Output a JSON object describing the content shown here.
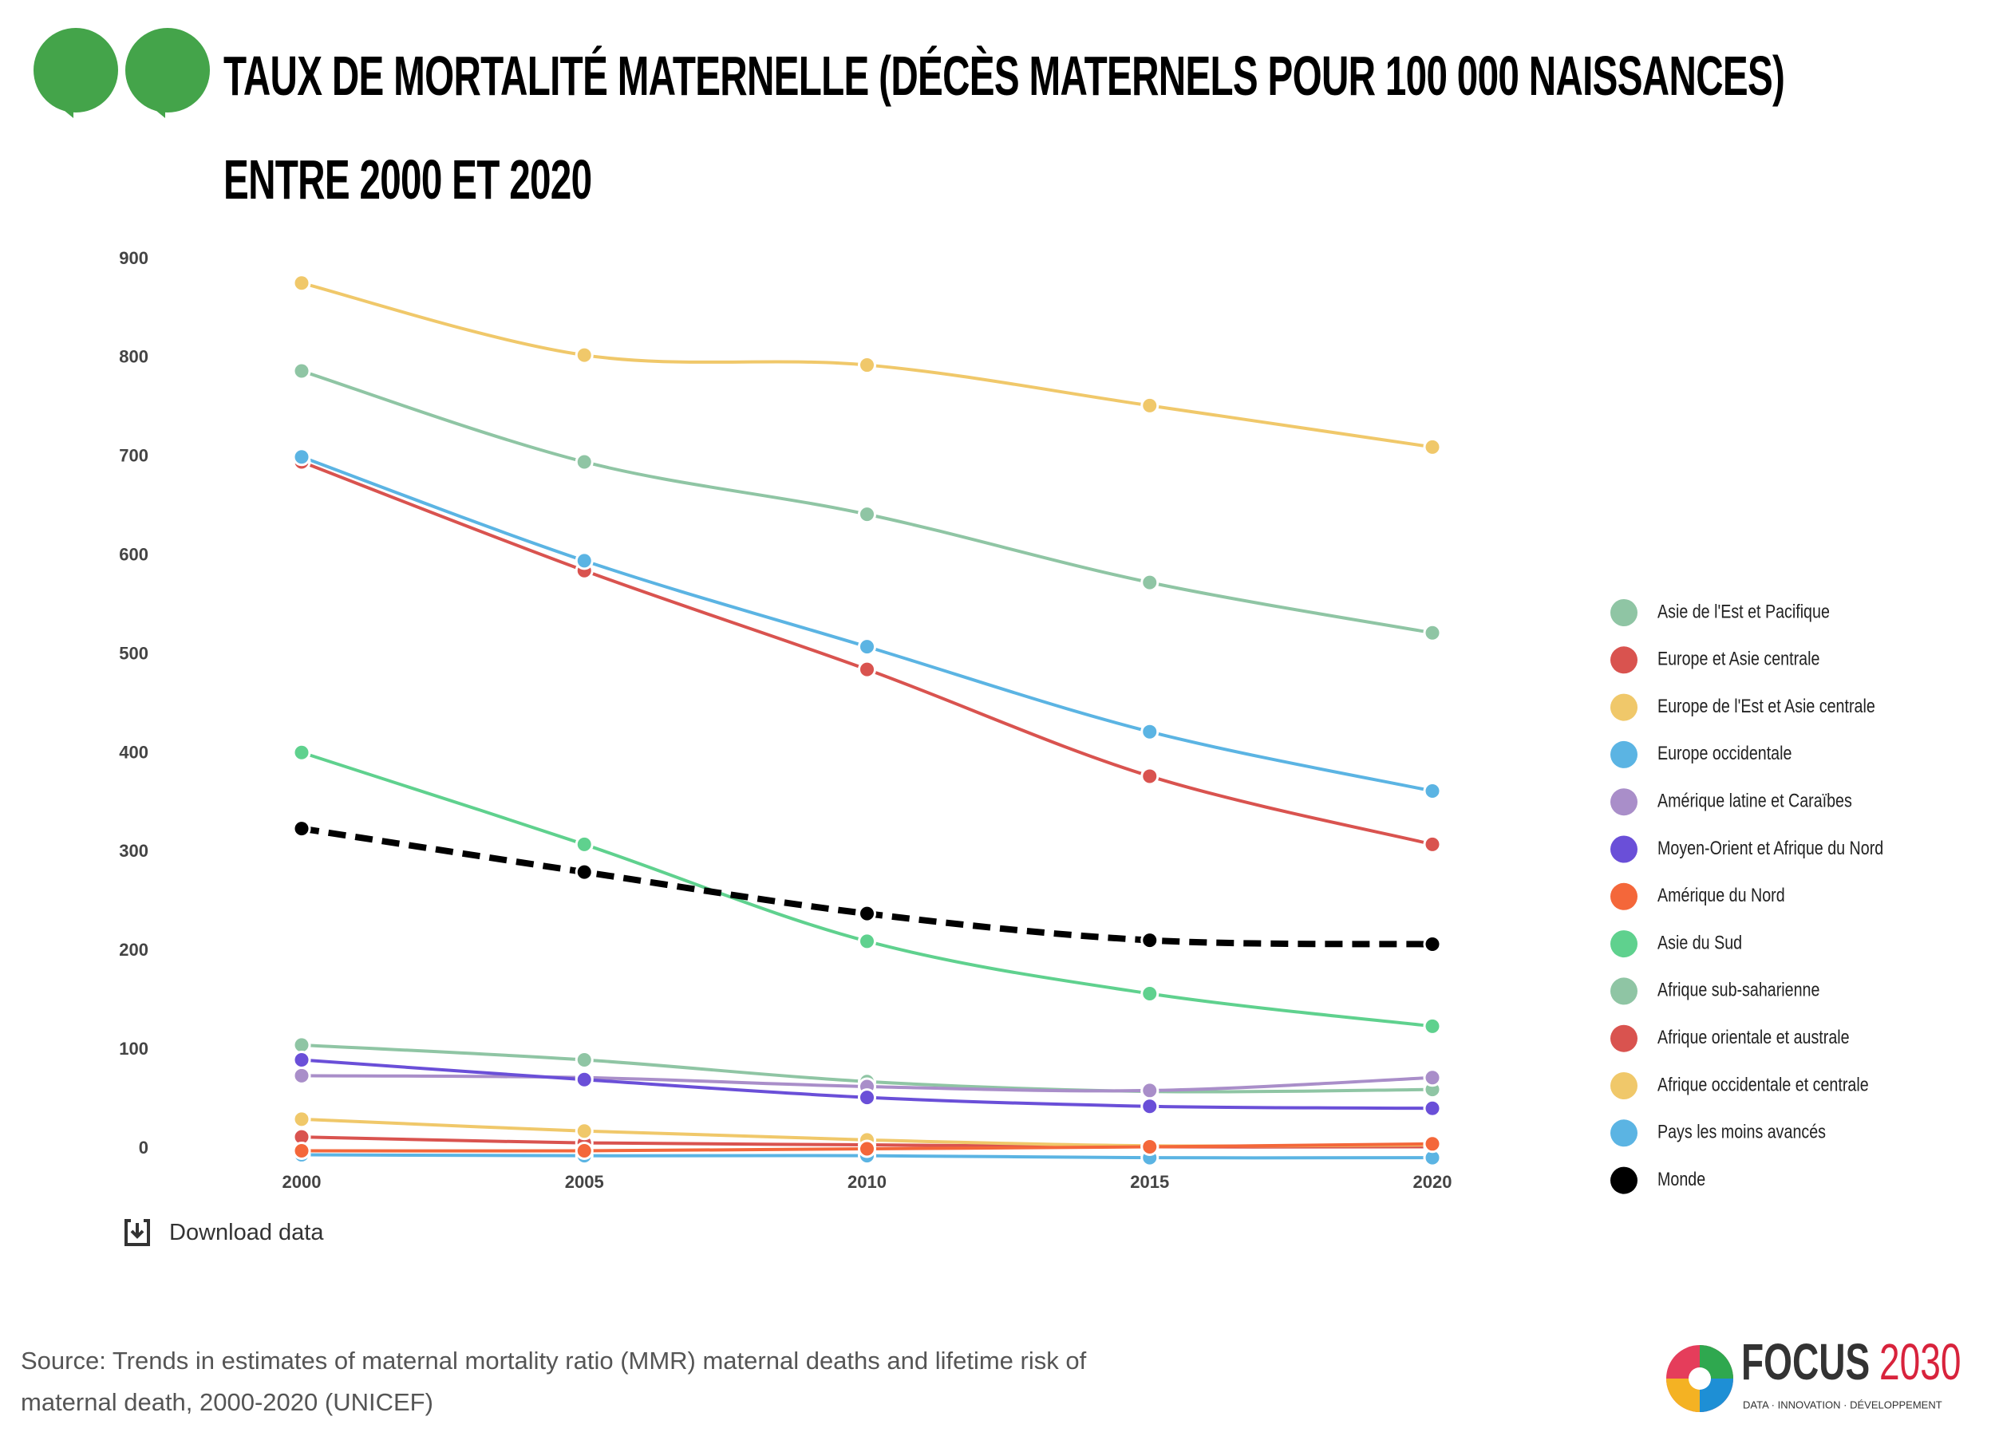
{
  "chart_data": {
    "type": "line",
    "title": "TAUX DE MORTALITÉ MATERNELLE (DÉCÈS MATERNELS POUR 100 000 NAISSANCES) ENTRE 2000 ET 2020",
    "x": [
      2000,
      2005,
      2010,
      2015,
      2020
    ],
    "xlim": [
      2000,
      2020
    ],
    "xticks": [
      2000,
      2005,
      2010,
      2015,
      2020
    ],
    "ylim": [
      0,
      900
    ],
    "yticks": [
      0,
      100,
      200,
      300,
      400,
      500,
      600,
      700,
      800,
      900
    ],
    "legend": "right",
    "series": [
      {
        "name": "Asie de l'Est et Pacifique",
        "color": "#8fc5a4",
        "values": [
          105,
          90,
          68,
          58,
          60
        ]
      },
      {
        "name": "Europe et Asie centrale",
        "color": "#d9534f",
        "values": [
          12,
          6,
          4,
          2,
          2
        ]
      },
      {
        "name": "Europe de l'Est et Asie centrale",
        "color": "#f0c86a",
        "values": [
          30,
          18,
          9,
          3,
          4
        ]
      },
      {
        "name": "Europe occidentale",
        "color": "#5bb4e3",
        "values": [
          -6,
          -7,
          -7,
          -9,
          -9
        ]
      },
      {
        "name": "Amérique latine et Caraïbes",
        "color": "#a98ec9",
        "values": [
          74,
          72,
          63,
          59,
          72
        ]
      },
      {
        "name": "Moyen-Orient et Afrique du Nord",
        "color": "#6a4fd8",
        "values": [
          90,
          70,
          52,
          43,
          41
        ]
      },
      {
        "name": "Amérique du Nord",
        "color": "#f4673a",
        "values": [
          -2,
          -2,
          0,
          2,
          5
        ]
      },
      {
        "name": "Asie du Sud",
        "color": "#5fd18e",
        "values": [
          401,
          308,
          210,
          157,
          124
        ]
      },
      {
        "name": "Afrique sub-saharienne",
        "color": "#8fc5a4",
        "values": [
          787,
          695,
          642,
          573,
          522
        ]
      },
      {
        "name": "Afrique orientale et australe",
        "color": "#d9534f",
        "values": [
          695,
          585,
          485,
          377,
          308
        ]
      },
      {
        "name": "Afrique occidentale et centrale",
        "color": "#f0c86a",
        "values": [
          876,
          803,
          793,
          752,
          710
        ]
      },
      {
        "name": "Pays les moins avancés",
        "color": "#5bb4e3",
        "values": [
          700,
          595,
          508,
          422,
          362
        ]
      },
      {
        "name": "Monde",
        "color": "#000000",
        "values": [
          324,
          280,
          238,
          211,
          207
        ],
        "dashed": true
      }
    ]
  },
  "download_label": "Download data",
  "source": "Source: Trends in estimates of maternal mortality ratio (MMR) maternal deaths and lifetime risk of maternal death, 2000-2020 (UNICEF)",
  "logo": {
    "name": "FOCUS",
    "year": "2030",
    "tagline": "DATA · INNOVATION · DÉVELOPPEMENT"
  }
}
